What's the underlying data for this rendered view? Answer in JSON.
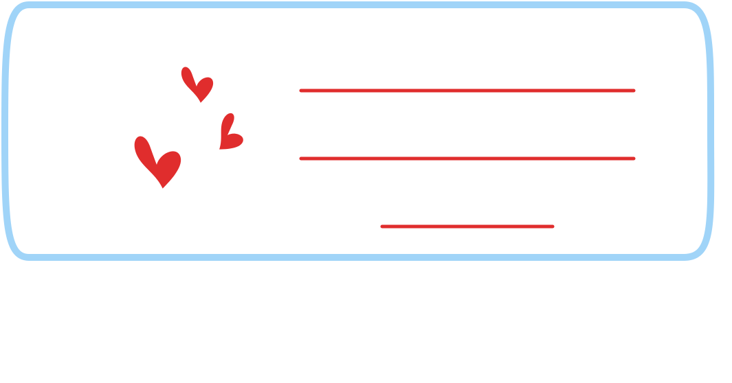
{
  "label_card": {
    "frame_color": "#a0d4f8",
    "background_color": "#ffffff",
    "accent_color": "#e02d2d",
    "decoration_icons": [
      "heart-icon",
      "heart-icon",
      "heart-icon"
    ],
    "writing_lines": [
      {
        "kind": "full"
      },
      {
        "kind": "full"
      },
      {
        "kind": "short"
      }
    ]
  }
}
